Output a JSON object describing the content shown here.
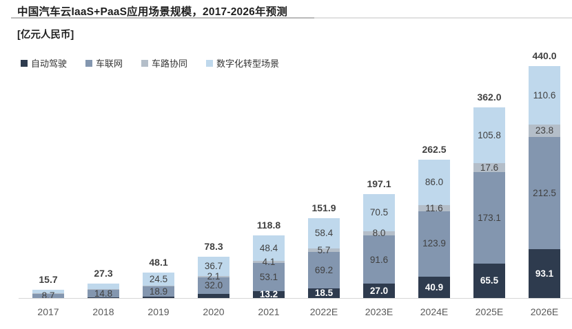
{
  "chart_data": {
    "type": "bar",
    "stacked": true,
    "title": "中国汽车云IaaS+PaaS应用场景规模，2017-2026年预测",
    "unit_label": "[亿元人民币]",
    "xlabel": "",
    "ylabel": "亿元人民币",
    "ylim": [
      0,
      440
    ],
    "grid": false,
    "legend_position": "top-left",
    "categories": [
      "2017",
      "2018",
      "2019",
      "2020",
      "2021",
      "2022E",
      "2023E",
      "2024E",
      "2025E",
      "2026E"
    ],
    "totals": [
      "15.7",
      "27.3",
      "48.1",
      "78.3",
      "118.8",
      "151.9",
      "197.1",
      "262.5",
      "362.0",
      "440.0"
    ],
    "series": [
      {
        "name": "自动驾驶",
        "color": "#2e3b4e",
        "label_style": "white",
        "values": [
          0.5,
          1.2,
          3.0,
          7.5,
          13.2,
          18.5,
          27.0,
          40.9,
          65.5,
          93.1
        ],
        "labels": [
          "",
          "",
          "",
          "",
          "13.2",
          "18.5",
          "27.0",
          "40.9",
          "65.5",
          "93.1"
        ]
      },
      {
        "name": "车联网",
        "color": "#8396af",
        "label_style": "dark",
        "values": [
          8.7,
          14.8,
          18.9,
          32.0,
          53.1,
          69.2,
          91.6,
          123.9,
          173.1,
          212.5
        ],
        "labels": [
          "8.7",
          "14.8",
          "18.9",
          "32.0",
          "53.1",
          "69.2",
          "91.6",
          "123.9",
          "173.1",
          "212.5"
        ]
      },
      {
        "name": "车路协同",
        "color": "#b4bec9",
        "label_style": "dark",
        "values": [
          0.5,
          0.9,
          1.7,
          2.1,
          4.1,
          5.7,
          8.0,
          11.6,
          17.6,
          23.8
        ],
        "labels": [
          "",
          "",
          "",
          "2.1",
          "4.1",
          "5.7",
          "8.0",
          "11.6",
          "17.6",
          "23.8"
        ]
      },
      {
        "name": "数字化转型场景",
        "color": "#bfd8ec",
        "label_style": "dark",
        "values": [
          6.0,
          10.4,
          24.5,
          36.7,
          48.4,
          58.4,
          70.5,
          86.0,
          105.8,
          110.6
        ],
        "labels": [
          "",
          "",
          "24.5",
          "36.7",
          "48.4",
          "58.4",
          "70.5",
          "86.0",
          "105.8",
          "110.6"
        ]
      }
    ]
  }
}
